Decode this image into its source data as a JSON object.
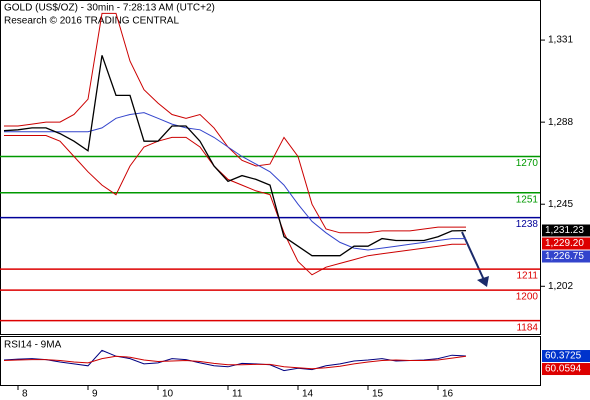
{
  "chart_data": [
    {
      "type": "line",
      "title": "GOLD (US$/OZ) - 30min - 7:28:13 AM (UTC+2)",
      "subtitle": "Research © 2016 TRADING CENTRAL",
      "categories": [
        null,
        "8",
        null,
        null,
        null,
        null,
        "9",
        null,
        null,
        null,
        null,
        "10",
        null,
        null,
        null,
        null,
        "11",
        null,
        null,
        null,
        null,
        "14",
        null,
        null,
        null,
        null,
        "15",
        null,
        null,
        null,
        null,
        "16",
        null,
        null
      ],
      "ylim": [
        1177,
        1352
      ],
      "yticks": [
        {
          "value": 1202,
          "label": "1,202"
        },
        {
          "value": 1245,
          "label": "1,245"
        },
        {
          "value": 1288,
          "label": "1,288"
        },
        {
          "value": 1331,
          "label": "1,331"
        }
      ],
      "series": [
        {
          "color": "#cc0000",
          "values": [
            1286,
            1286,
            1287,
            1288,
            1288,
            1292,
            1300,
            1345,
            1345,
            1320,
            1305,
            1298,
            1292,
            1290,
            1292,
            1285,
            1275,
            1268,
            1265,
            1266,
            1280,
            1270,
            1245,
            1232,
            1230,
            1230,
            1230,
            1231,
            1231,
            1231,
            1232,
            1233,
            1233,
            1233
          ]
        },
        {
          "color": "#cc0000",
          "values": [
            1281,
            1281,
            1281,
            1281,
            1278,
            1270,
            1262,
            1255,
            1250,
            1265,
            1275,
            1278,
            1280,
            1280,
            1275,
            1265,
            1258,
            1255,
            1252,
            1250,
            1230,
            1215,
            1208,
            1212,
            1214,
            1216,
            1218,
            1219,
            1220,
            1221,
            1222,
            1223,
            1224,
            1224
          ]
        },
        {
          "color": "#3344cc",
          "values": [
            1283,
            1283,
            1283,
            1283,
            1283,
            1283,
            1283,
            1285,
            1290,
            1292,
            1293,
            1290,
            1287,
            1285,
            1284,
            1280,
            1275,
            1270,
            1266,
            1262,
            1255,
            1245,
            1236,
            1230,
            1225,
            1222,
            1221,
            1222,
            1223,
            1224,
            1225,
            1226,
            1227,
            1227
          ]
        },
        {
          "color": "#000000",
          "values": [
            1283.5,
            1284,
            1285,
            1285,
            1282,
            1278,
            1273,
            1323,
            1302,
            1302,
            1278,
            1278,
            1286,
            1286,
            1278,
            1265,
            1257,
            1260,
            1258,
            1255,
            1228,
            1223,
            1218,
            1218,
            1218,
            1223,
            1223,
            1227,
            1226,
            1226,
            1226,
            1228,
            1231,
            1231.2
          ]
        }
      ],
      "levels": [
        {
          "value": 1270,
          "color": "#009900"
        },
        {
          "value": 1251,
          "color": "#009900"
        },
        {
          "value": 1238,
          "color": "#000099"
        },
        {
          "value": 1211,
          "color": "#dd0000"
        },
        {
          "value": 1200,
          "color": "#dd0000"
        },
        {
          "value": 1184,
          "color": "#dd0000"
        }
      ],
      "price_labels": [
        {
          "value": 1231.23,
          "label": "1,231.23",
          "color": "#000000"
        },
        {
          "value": 1229.2,
          "label": "1,229.20",
          "color": "#dd0000"
        },
        {
          "value": 1226.75,
          "label": "1,226.75",
          "color": "#3344cc"
        }
      ]
    },
    {
      "type": "line",
      "title": "RSI14 - 9MA",
      "ylim": [
        0,
        100
      ],
      "series": [
        {
          "color": "#000080",
          "values": [
            52,
            54,
            55,
            53,
            48,
            44,
            40,
            72,
            60,
            55,
            44,
            46,
            55,
            53,
            46,
            40,
            38,
            45,
            44,
            42,
            30,
            35,
            32,
            40,
            44,
            50,
            52,
            55,
            50,
            51,
            52,
            55,
            62,
            60.3725
          ]
        },
        {
          "color": "#cc0000",
          "values": [
            51,
            52,
            53,
            53,
            51,
            48,
            46,
            55,
            60,
            58,
            52,
            49,
            50,
            51,
            49,
            45,
            42,
            42,
            43,
            43,
            38,
            36,
            34,
            36,
            39,
            44,
            48,
            51,
            52,
            51,
            51,
            52,
            56,
            60.0594
          ]
        }
      ],
      "price_labels": [
        {
          "value": 60.3725,
          "label": "60.3725",
          "color": "#0033cc"
        },
        {
          "value": 60.0594,
          "label": "60.0594",
          "color": "#dd0000"
        }
      ]
    }
  ]
}
